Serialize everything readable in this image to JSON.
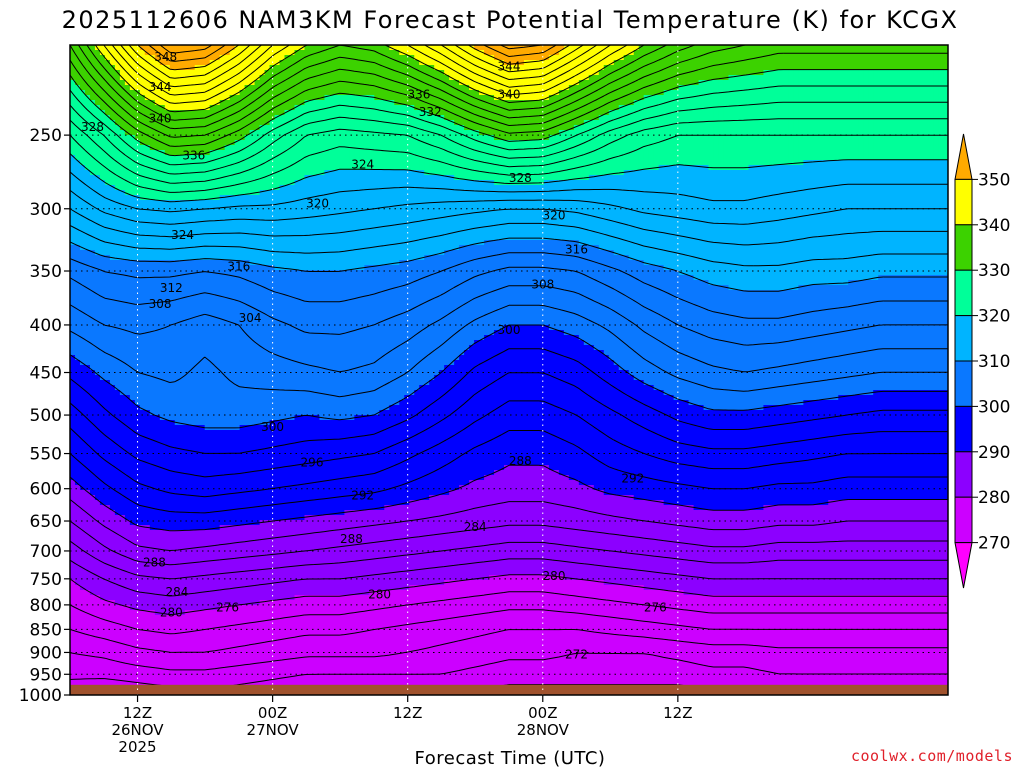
{
  "chart_data": {
    "type": "heatmap",
    "title": "2025112606 NAM3KM Forecast Potential Temperature (K) for KCGX",
    "xlabel": "Forecast Time (UTC)",
    "ylabel": "",
    "y_axis": {
      "ticks": [
        250,
        300,
        350,
        400,
        450,
        500,
        550,
        600,
        650,
        700,
        750,
        800,
        850,
        900,
        950,
        1000
      ],
      "range": [
        200,
        1000
      ],
      "scale": "log",
      "inverted": true
    },
    "x_axis": {
      "start_hour": 6,
      "end_hour": 84,
      "ticks": [
        {
          "hour": 12,
          "lines": [
            "12Z",
            "26NOV",
            "2025"
          ]
        },
        {
          "hour": 24,
          "lines": [
            "00Z",
            "27NOV"
          ]
        },
        {
          "hour": 36,
          "lines": [
            "12Z"
          ]
        },
        {
          "hour": 48,
          "lines": [
            "00Z",
            "28NOV"
          ]
        },
        {
          "hour": 60,
          "lines": [
            "12Z"
          ]
        }
      ]
    },
    "colorbar": {
      "labels": [
        350,
        340,
        330,
        320,
        310,
        300,
        290,
        280,
        270
      ],
      "bins": [
        {
          "min": 260,
          "max": 270,
          "color": "#ff00ff"
        },
        {
          "min": 270,
          "max": 280,
          "color": "#cc00ff"
        },
        {
          "min": 280,
          "max": 290,
          "color": "#8c00ff"
        },
        {
          "min": 290,
          "max": 300,
          "color": "#0000ff"
        },
        {
          "min": 300,
          "max": 310,
          "color": "#0a78ff"
        },
        {
          "min": 310,
          "max": 320,
          "color": "#00b4ff"
        },
        {
          "min": 320,
          "max": 330,
          "color": "#00ff99"
        },
        {
          "min": 330,
          "max": 340,
          "color": "#3cd200"
        },
        {
          "min": 340,
          "max": 350,
          "color": "#ffff00"
        },
        {
          "min": 350,
          "max": 360,
          "color": "#ffaa00"
        }
      ]
    },
    "contour_interval": 2,
    "series": [
      {
        "hours": [
          6,
          9,
          12,
          15,
          18,
          21,
          24,
          27,
          30,
          33,
          36,
          39,
          42,
          45,
          48,
          51,
          54,
          57,
          60,
          63,
          66,
          69,
          72,
          75,
          78,
          81,
          84
        ]
      },
      {
        "name": "",
        "levels_hPa": [
          1000,
          950,
          900,
          850,
          800,
          750,
          700,
          650,
          600,
          550,
          500,
          450,
          400,
          350,
          300,
          250,
          200
        ]
      }
    ],
    "theta_field_K": {
      "p1000": [
        270.5,
        270.0,
        270.5,
        271.0,
        271.5,
        271.0,
        270.5,
        270.0,
        269.5,
        269.5,
        270.0,
        270.0,
        269.5,
        269.0,
        269.0,
        269.0,
        269.0,
        269.0,
        269.0,
        269.5,
        269.5,
        269.5,
        270.0,
        270.0,
        270.0,
        270.0,
        270.0
      ],
      "p950": [
        272.5,
        272.5,
        273.0,
        273.5,
        273.5,
        273.0,
        272.5,
        272.0,
        272.0,
        272.0,
        272.0,
        272.0,
        271.5,
        271.0,
        271.0,
        271.0,
        271.0,
        271.0,
        271.0,
        271.5,
        271.5,
        272.0,
        272.0,
        272.0,
        272.0,
        272.0,
        272.0
      ],
      "p900": [
        274.0,
        274.5,
        275.5,
        276.0,
        276.0,
        275.5,
        275.0,
        274.5,
        274.5,
        274.5,
        274.0,
        273.5,
        273.0,
        272.5,
        272.5,
        272.0,
        272.0,
        272.0,
        272.5,
        273.0,
        273.0,
        273.5,
        273.5,
        273.5,
        273.5,
        273.5,
        273.5
      ],
      "p850": [
        276.0,
        277.0,
        278.0,
        278.5,
        278.0,
        277.5,
        277.0,
        276.5,
        276.5,
        276.0,
        275.5,
        275.0,
        274.5,
        274.0,
        274.0,
        274.0,
        274.5,
        275.0,
        275.5,
        276.0,
        276.0,
        276.0,
        276.0,
        276.0,
        276.0,
        276.0,
        276.0
      ],
      "p800": [
        278.0,
        279.5,
        280.5,
        281.0,
        280.5,
        280.0,
        279.5,
        279.0,
        279.0,
        278.5,
        278.0,
        277.5,
        277.0,
        276.5,
        276.5,
        277.0,
        277.5,
        278.0,
        278.5,
        279.0,
        279.0,
        279.0,
        279.0,
        279.0,
        279.0,
        279.0,
        279.0
      ],
      "p750": [
        280.0,
        282.0,
        283.5,
        284.0,
        283.5,
        283.0,
        282.5,
        282.0,
        282.0,
        281.5,
        281.0,
        280.5,
        280.0,
        279.5,
        279.5,
        280.0,
        280.5,
        281.0,
        281.5,
        282.0,
        282.0,
        282.0,
        282.0,
        282.0,
        282.0,
        282.0,
        282.0
      ],
      "p700": [
        283.0,
        285.5,
        287.5,
        288.0,
        287.5,
        287.0,
        286.5,
        286.0,
        285.5,
        285.0,
        284.5,
        284.0,
        283.5,
        283.0,
        283.0,
        283.5,
        284.0,
        284.5,
        285.0,
        285.5,
        285.5,
        285.0,
        285.0,
        285.0,
        285.0,
        285.0,
        285.0
      ],
      "p650": [
        286.0,
        288.5,
        290.5,
        291.0,
        291.0,
        290.5,
        290.0,
        289.5,
        289.0,
        288.5,
        288.0,
        287.5,
        287.0,
        286.5,
        286.5,
        287.0,
        287.5,
        288.0,
        288.5,
        289.0,
        289.0,
        288.5,
        288.5,
        288.0,
        288.0,
        288.0,
        288.0
      ],
      "p600": [
        289.0,
        291.5,
        293.5,
        294.5,
        295.0,
        294.5,
        294.0,
        293.5,
        293.0,
        292.5,
        291.5,
        290.5,
        289.5,
        289.0,
        289.0,
        289.5,
        290.5,
        291.0,
        291.5,
        292.0,
        292.0,
        291.5,
        291.5,
        291.0,
        291.0,
        291.0,
        291.0
      ],
      "p550": [
        292.0,
        294.5,
        296.5,
        297.5,
        298.0,
        298.0,
        297.5,
        297.0,
        296.5,
        296.0,
        294.5,
        293.0,
        291.5,
        290.5,
        290.5,
        291.5,
        293.0,
        294.0,
        295.0,
        295.5,
        295.5,
        295.0,
        294.5,
        294.0,
        294.0,
        294.0,
        294.0
      ],
      "p500": [
        295.0,
        297.5,
        299.5,
        300.5,
        301.0,
        301.0,
        300.5,
        300.0,
        300.5,
        300.0,
        298.5,
        296.5,
        294.5,
        293.0,
        293.0,
        294.0,
        295.5,
        297.0,
        298.5,
        299.5,
        299.5,
        299.0,
        298.5,
        298.0,
        297.5,
        297.5,
        297.5
      ],
      "p450": [
        298.5,
        300.5,
        302.0,
        302.5,
        301.5,
        302.5,
        303.0,
        303.5,
        304.0,
        303.5,
        302.0,
        300.0,
        297.5,
        296.0,
        296.0,
        297.0,
        299.0,
        301.0,
        302.5,
        303.5,
        304.0,
        303.5,
        303.0,
        302.5,
        302.0,
        302.0,
        302.0
      ],
      "p400": [
        302.5,
        304.0,
        304.5,
        304.0,
        303.0,
        304.0,
        305.5,
        306.5,
        306.5,
        306.0,
        305.0,
        303.5,
        301.5,
        300.0,
        300.0,
        301.0,
        302.5,
        304.5,
        306.0,
        307.0,
        307.5,
        307.5,
        307.0,
        306.5,
        306.0,
        306.0,
        306.0
      ],
      "p350": [
        306.5,
        308.0,
        308.5,
        308.5,
        308.0,
        308.5,
        309.5,
        310.0,
        310.0,
        309.5,
        309.0,
        308.0,
        306.5,
        305.5,
        305.5,
        306.0,
        307.5,
        309.0,
        310.0,
        311.0,
        311.5,
        311.5,
        311.0,
        311.0,
        310.5,
        310.5,
        310.5
      ],
      "p300": [
        314.0,
        316.5,
        318.0,
        318.5,
        318.0,
        317.5,
        317.5,
        317.0,
        316.5,
        316.0,
        315.5,
        315.0,
        314.5,
        314.0,
        314.0,
        314.5,
        315.5,
        316.5,
        317.0,
        317.5,
        317.5,
        317.0,
        316.5,
        316.0,
        316.0,
        316.0,
        316.0
      ],
      "p250": [
        322.0,
        326.0,
        331.0,
        334.5,
        334.0,
        331.0,
        327.0,
        324.0,
        323.0,
        323.5,
        324.0,
        326.0,
        329.0,
        331.5,
        331.0,
        328.0,
        325.0,
        323.0,
        322.0,
        322.0,
        322.0,
        322.0,
        322.0,
        322.0,
        322.0,
        322.0,
        322.0
      ],
      "p200": [
        334.0,
        342.0,
        350.0,
        356.0,
        355.0,
        350.0,
        344.0,
        340.0,
        338.0,
        339.0,
        342.0,
        346.0,
        351.0,
        355.0,
        354.0,
        349.0,
        344.0,
        340.0,
        337.0,
        335.0,
        334.0,
        333.0,
        333.0,
        333.0,
        333.0,
        333.0,
        333.0
      ]
    },
    "contour_labels": [
      {
        "text": "348",
        "hour": 14.5,
        "p": 206
      },
      {
        "text": "344",
        "hour": 45,
        "p": 211
      },
      {
        "text": "344",
        "hour": 14,
        "p": 222
      },
      {
        "text": "336",
        "hour": 37,
        "p": 226
      },
      {
        "text": "340",
        "hour": 45,
        "p": 226
      },
      {
        "text": "332",
        "hour": 38,
        "p": 236
      },
      {
        "text": "340",
        "hour": 14,
        "p": 240
      },
      {
        "text": "328",
        "hour": 8,
        "p": 245
      },
      {
        "text": "336",
        "hour": 17,
        "p": 263
      },
      {
        "text": "324",
        "hour": 32,
        "p": 269
      },
      {
        "text": "328",
        "hour": 46,
        "p": 278
      },
      {
        "text": "320",
        "hour": 28,
        "p": 296
      },
      {
        "text": "320",
        "hour": 49,
        "p": 305
      },
      {
        "text": "324",
        "hour": 16,
        "p": 320
      },
      {
        "text": "316",
        "hour": 51,
        "p": 332
      },
      {
        "text": "316",
        "hour": 21,
        "p": 346
      },
      {
        "text": "312",
        "hour": 15,
        "p": 365
      },
      {
        "text": "308",
        "hour": 48,
        "p": 362
      },
      {
        "text": "308",
        "hour": 14,
        "p": 380
      },
      {
        "text": "304",
        "hour": 22,
        "p": 393
      },
      {
        "text": "300",
        "hour": 45,
        "p": 405
      },
      {
        "text": "300",
        "hour": 24,
        "p": 515
      },
      {
        "text": "296",
        "hour": 27.5,
        "p": 562
      },
      {
        "text": "288",
        "hour": 46,
        "p": 560
      },
      {
        "text": "292",
        "hour": 32,
        "p": 610
      },
      {
        "text": "292",
        "hour": 56,
        "p": 585
      },
      {
        "text": "284",
        "hour": 42,
        "p": 660
      },
      {
        "text": "288",
        "hour": 31,
        "p": 680
      },
      {
        "text": "288",
        "hour": 13.5,
        "p": 720
      },
      {
        "text": "280",
        "hour": 49,
        "p": 745
      },
      {
        "text": "284",
        "hour": 15.5,
        "p": 775
      },
      {
        "text": "280",
        "hour": 33.5,
        "p": 780
      },
      {
        "text": "276",
        "hour": 20,
        "p": 805
      },
      {
        "text": "276",
        "hour": 58,
        "p": 805
      },
      {
        "text": "280",
        "hour": 15,
        "p": 815
      },
      {
        "text": "272",
        "hour": 51,
        "p": 905
      }
    ],
    "terrain": {
      "color": "#a0522d",
      "surface_p": 975
    },
    "credit": "coolwx.com/models"
  }
}
